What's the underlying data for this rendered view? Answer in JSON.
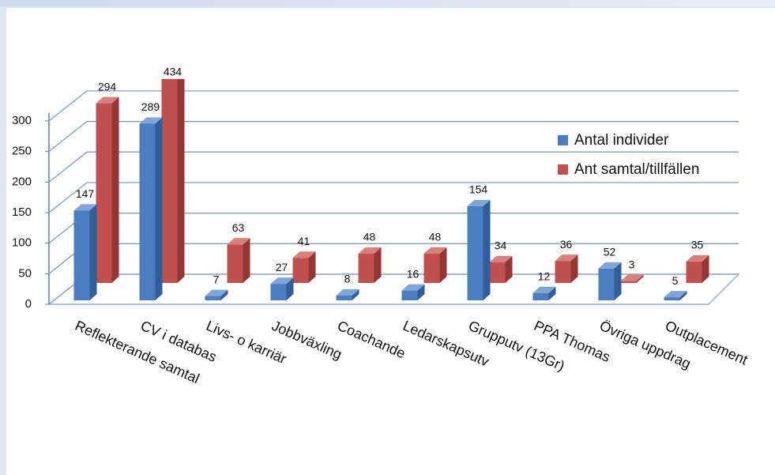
{
  "chart_data": {
    "type": "bar3d",
    "categories": [
      "Reflekterande samtal",
      "CV i databas",
      "Livs- o karriär",
      "Jobbväxling",
      "Coachande",
      "Ledarskapsutv",
      "Grupputv (13Gr)",
      "PPA Thomas",
      "Övriga uppdrag",
      "Outplacement"
    ],
    "series": [
      {
        "name": "Antal individer",
        "color": "#4a7ec0",
        "values": [
          147,
          289,
          7,
          27,
          8,
          16,
          154,
          12,
          52,
          5
        ]
      },
      {
        "name": "Ant samtal/tillfällen",
        "color": "#c0504d",
        "values": [
          294,
          434,
          63,
          41,
          48,
          48,
          34,
          36,
          3,
          35
        ]
      }
    ],
    "ylim": [
      0,
      300
    ],
    "yticks": [
      0,
      50,
      100,
      150,
      200,
      250,
      300
    ],
    "grid": true,
    "legend": "right"
  }
}
